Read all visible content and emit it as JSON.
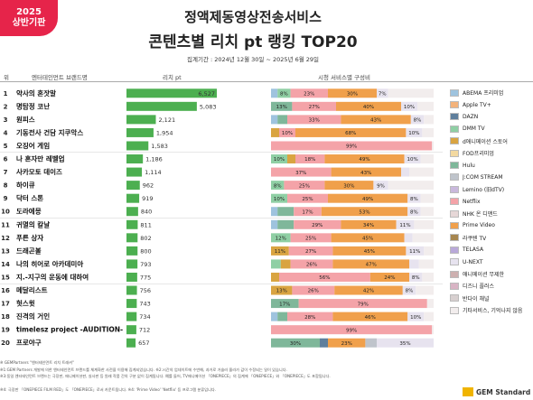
{
  "badge": {
    "year": "2025",
    "half": "상반기판"
  },
  "title": {
    "line1": "정액제동영상전송서비스",
    "line2": "콘텐츠별 리치 pt 랭킹 TOP20"
  },
  "period": "집계기간 : 2024년 12월 30일 ~ 2025년 6월 29일",
  "headers": {
    "rank": "위",
    "brand": "엔터테인먼트 브랜드명",
    "reach": "리치 pt",
    "composition": "시청 서비스별 구성비"
  },
  "legend": [
    {
      "label": "ABEMA 프리미엄",
      "color": "#9ec3de"
    },
    {
      "label": "Apple TV+",
      "color": "#f3b27a"
    },
    {
      "label": "DAZN",
      "color": "#5f7f9c"
    },
    {
      "label": "DMM TV",
      "color": "#8fcfa4"
    },
    {
      "label": "d애니메이션 스토어",
      "color": "#d9a441"
    },
    {
      "label": "FOD프리미엄",
      "color": "#f3d9a0"
    },
    {
      "label": "Hulu",
      "color": "#7fb79a"
    },
    {
      "label": "J:COM STREAM",
      "color": "#bfc4cb"
    },
    {
      "label": "Lemino (旧dTV)",
      "color": "#c9b8dc"
    },
    {
      "label": "Netflix",
      "color": "#f4a3a8"
    },
    {
      "label": "NHK 온 디맨드",
      "color": "#e6d7d7"
    },
    {
      "label": "Prime Video",
      "color": "#f0a04b"
    },
    {
      "label": "라쿠텐 TV",
      "color": "#a6864f"
    },
    {
      "label": "TELASA",
      "color": "#b9a9d9"
    },
    {
      "label": "U-NEXT",
      "color": "#e7e3ef"
    },
    {
      "label": "애니메이션 무제한",
      "color": "#cdb0b0"
    },
    {
      "label": "디즈니 플러스",
      "color": "#d8b4c4"
    },
    {
      "label": "반다이 채널",
      "color": "#d8d0d0"
    },
    {
      "label": "기타서비스, 기억나지 않음",
      "color": "#f2eded"
    }
  ],
  "chart_data": {
    "type": "bar",
    "title": "콘텐츠별 리치 pt 랭킹 TOP20",
    "xlabel": "",
    "ylabel": "리치 pt",
    "categories": [
      "약사의 혼잣말",
      "명탐정 코난",
      "원피스",
      "기동전사 건담 지쿠악스",
      "오징어 게임",
      "나 혼자만 레벨업",
      "사카모토 데이즈",
      "하이큐",
      "닥터 스톤",
      "도라에몽",
      "귀멸의 칼날",
      "푸른 상자",
      "드래곤볼",
      "나의 히어로 아카데미아",
      "지.-지구의 운동에 대하여",
      "메달리스트",
      "헛스윗",
      "진격의 거인",
      "timelesz project -AUDITION-",
      "프로야구"
    ],
    "values": [
      6527,
      5083,
      2121,
      1954,
      1583,
      1186,
      1114,
      962,
      919,
      840,
      811,
      802,
      800,
      793,
      775,
      756,
      743,
      734,
      712,
      657
    ],
    "value_labels": [
      "6,527",
      "5,083",
      "2,121",
      "1,954",
      "1,583",
      "1,186",
      "1,114",
      "962",
      "919",
      "840",
      "811",
      "802",
      "800",
      "793",
      "775",
      "756",
      "743",
      "734",
      "712",
      "657"
    ],
    "ranks": [
      "1",
      "2",
      "3",
      "4",
      "5",
      "6",
      "7",
      "8",
      "9",
      "10",
      "11",
      "12",
      "13",
      "14",
      "15",
      "16",
      "17",
      "18",
      "19",
      "20"
    ],
    "composition": [
      [
        {
          "s": "ABEMA 프리미엄",
          "v": 4
        },
        {
          "s": "DMM TV",
          "v": 8,
          "l": "8%"
        },
        {
          "s": "Netflix",
          "v": 23,
          "l": "23%"
        },
        {
          "s": "Prime Video",
          "v": 30,
          "l": "30%"
        },
        {
          "s": "U-NEXT",
          "v": 7,
          "l": "7%"
        },
        {
          "s": "기타서비스, 기억나지 않음",
          "v": 28
        }
      ],
      [
        {
          "s": "Hulu",
          "v": 13,
          "l": "13%"
        },
        {
          "s": "Netflix",
          "v": 27,
          "l": "27%"
        },
        {
          "s": "Prime Video",
          "v": 40,
          "l": "40%"
        },
        {
          "s": "U-NEXT",
          "v": 10,
          "l": "10%"
        },
        {
          "s": "기타서비스, 기억나지 않음",
          "v": 10
        }
      ],
      [
        {
          "s": "ABEMA 프리미엄",
          "v": 4
        },
        {
          "s": "Hulu",
          "v": 6
        },
        {
          "s": "Netflix",
          "v": 33,
          "l": "33%"
        },
        {
          "s": "Prime Video",
          "v": 43,
          "l": "43%"
        },
        {
          "s": "U-NEXT",
          "v": 8,
          "l": "8%"
        },
        {
          "s": "기타서비스, 기억나지 않음",
          "v": 6
        }
      ],
      [
        {
          "s": "d애니메이션 스토어",
          "v": 5,
          "l": "5%"
        },
        {
          "s": "Netflix",
          "v": 10,
          "l": "10%"
        },
        {
          "s": "Prime Video",
          "v": 68,
          "l": "68%"
        },
        {
          "s": "U-NEXT",
          "v": 10,
          "l": "10%"
        },
        {
          "s": "기타서비스, 기억나지 않음",
          "v": 7
        }
      ],
      [
        {
          "s": "Netflix",
          "v": 99,
          "l": "99%"
        },
        {
          "s": "기타서비스, 기억나지 않음",
          "v": 1
        }
      ],
      [
        {
          "s": "DMM TV",
          "v": 10,
          "l": "10%"
        },
        {
          "s": "d애니메이션 스토어",
          "v": 5,
          "l": "5%"
        },
        {
          "s": "Netflix",
          "v": 18,
          "l": "18%"
        },
        {
          "s": "Prime Video",
          "v": 49,
          "l": "49%"
        },
        {
          "s": "U-NEXT",
          "v": 10,
          "l": "10%"
        },
        {
          "s": "기타서비스, 기억나지 않음",
          "v": 8
        }
      ],
      [
        {
          "s": "Netflix",
          "v": 37,
          "l": "37%"
        },
        {
          "s": "Prime Video",
          "v": 43,
          "l": "43%"
        },
        {
          "s": "U-NEXT",
          "v": 5,
          "l": "5%"
        },
        {
          "s": "기타서비스, 기억나지 않음",
          "v": 15
        }
      ],
      [
        {
          "s": "DMM TV",
          "v": 8,
          "l": "8%"
        },
        {
          "s": "Netflix",
          "v": 25,
          "l": "25%"
        },
        {
          "s": "Prime Video",
          "v": 30,
          "l": "30%"
        },
        {
          "s": "U-NEXT",
          "v": 9,
          "l": "9%"
        },
        {
          "s": "기타서비스, 기억나지 않음",
          "v": 28
        }
      ],
      [
        {
          "s": "DMM TV",
          "v": 10,
          "l": "10%"
        },
        {
          "s": "Netflix",
          "v": 25,
          "l": "25%"
        },
        {
          "s": "Prime Video",
          "v": 49,
          "l": "49%"
        },
        {
          "s": "U-NEXT",
          "v": 8,
          "l": "8%"
        },
        {
          "s": "기타서비스, 기억나지 않음",
          "v": 8
        }
      ],
      [
        {
          "s": "ABEMA 프리미엄",
          "v": 4
        },
        {
          "s": "Hulu",
          "v": 10
        },
        {
          "s": "Netflix",
          "v": 17,
          "l": "17%"
        },
        {
          "s": "Prime Video",
          "v": 53,
          "l": "53%"
        },
        {
          "s": "U-NEXT",
          "v": 8,
          "l": "8%"
        },
        {
          "s": "기타서비스, 기억나지 않음",
          "v": 8
        }
      ],
      [
        {
          "s": "ABEMA 프리미엄",
          "v": 4
        },
        {
          "s": "Hulu",
          "v": 10
        },
        {
          "s": "Netflix",
          "v": 29,
          "l": "29%"
        },
        {
          "s": "Prime Video",
          "v": 34,
          "l": "34%"
        },
        {
          "s": "U-NEXT",
          "v": 11,
          "l": "11%"
        },
        {
          "s": "기타서비스, 기억나지 않음",
          "v": 12
        }
      ],
      [
        {
          "s": "DMM TV",
          "v": 12,
          "l": "12%"
        },
        {
          "s": "Netflix",
          "v": 25,
          "l": "25%"
        },
        {
          "s": "Prime Video",
          "v": 45,
          "l": "45%"
        },
        {
          "s": "U-NEXT",
          "v": 5,
          "l": "5%"
        },
        {
          "s": "기타서비스, 기억나지 않음",
          "v": 13
        }
      ],
      [
        {
          "s": "d애니메이션 스토어",
          "v": 11,
          "l": "11%"
        },
        {
          "s": "Netflix",
          "v": 27,
          "l": "27%"
        },
        {
          "s": "Prime Video",
          "v": 45,
          "l": "45%"
        },
        {
          "s": "U-NEXT",
          "v": 11,
          "l": "11%"
        },
        {
          "s": "기타서비스, 기억나지 않음",
          "v": 6
        }
      ],
      [
        {
          "s": "DMM TV",
          "v": 6,
          "l": "6%"
        },
        {
          "s": "d애니메이션 스토어",
          "v": 6,
          "l": "6%"
        },
        {
          "s": "Netflix",
          "v": 26,
          "l": "26%"
        },
        {
          "s": "Prime Video",
          "v": 47,
          "l": "47%"
        },
        {
          "s": "U-NEXT",
          "v": 6,
          "l": "6%"
        },
        {
          "s": "기타서비스, 기억나지 않음",
          "v": 9
        }
      ],
      [
        {
          "s": "d애니메이션 스토어",
          "v": 5,
          "l": "5%"
        },
        {
          "s": "Netflix",
          "v": 56,
          "l": "56%"
        },
        {
          "s": "Prime Video",
          "v": 24,
          "l": "24%"
        },
        {
          "s": "U-NEXT",
          "v": 8,
          "l": "8%"
        },
        {
          "s": "기타서비스, 기억나지 않음",
          "v": 7
        }
      ],
      [
        {
          "s": "d애니메이션 스토어",
          "v": 13,
          "l": "13%"
        },
        {
          "s": "Netflix",
          "v": 26,
          "l": "26%"
        },
        {
          "s": "Prime Video",
          "v": 42,
          "l": "42%"
        },
        {
          "s": "U-NEXT",
          "v": 8,
          "l": "8%"
        },
        {
          "s": "기타서비스, 기억나지 않음",
          "v": 11
        }
      ],
      [
        {
          "s": "Hulu",
          "v": 17,
          "l": "17%"
        },
        {
          "s": "Netflix",
          "v": 79,
          "l": "79%"
        },
        {
          "s": "기타서비스, 기억나지 않음",
          "v": 4
        }
      ],
      [
        {
          "s": "ABEMA 프리미엄",
          "v": 4
        },
        {
          "s": "Hulu",
          "v": 6
        },
        {
          "s": "Netflix",
          "v": 28,
          "l": "28%"
        },
        {
          "s": "Prime Video",
          "v": 46,
          "l": "46%"
        },
        {
          "s": "U-NEXT",
          "v": 10,
          "l": "10%"
        },
        {
          "s": "기타서비스, 기억나지 않음",
          "v": 6
        }
      ],
      [
        {
          "s": "Netflix",
          "v": 99,
          "l": "99%"
        },
        {
          "s": "기타서비스, 기억나지 않음",
          "v": 1
        }
      ],
      [
        {
          "s": "Hulu",
          "v": 30,
          "l": "30%"
        },
        {
          "s": "DAZN",
          "v": 5
        },
        {
          "s": "Prime Video",
          "v": 23,
          "l": "23%"
        },
        {
          "s": "J:COM STREAM",
          "v": 7
        },
        {
          "s": "U-NEXT",
          "v": 35,
          "l": "35%"
        }
      ]
    ]
  },
  "footer": [
    "※ GEMPartners \"엔터테인먼트 리치 트래커\"",
    "※1:GEM Partners 개발에 의한 엔터테인먼트 브랜드를 체계화한 사전을 이용해 집계되었습니다.       ※2:시간의 업데이트에 수반해, 과거로 거슬러 올라가 값이 수정되는 일이 있습니다.",
    "※3:동일 엔터테인먼트 브랜드는 극장판, 애니메이션판, 실사판 등 원래 작품 간의 구분 없이 집계됩니다. 예를 들어, TV애니메이션 「ONEPIECE」의 집계에 「ONEPIECE」와 「ONEPIECE」도 포함됩니다.",
    "※4: 극장판 「ONEPIECE FILM RED」도 「ONEPIECE」로서 카운트됩니다.                     ※4: 'Prime Video' 'Netflix' 등 프로그램 분류입니다."
  ],
  "logo": "GEM Standard"
}
